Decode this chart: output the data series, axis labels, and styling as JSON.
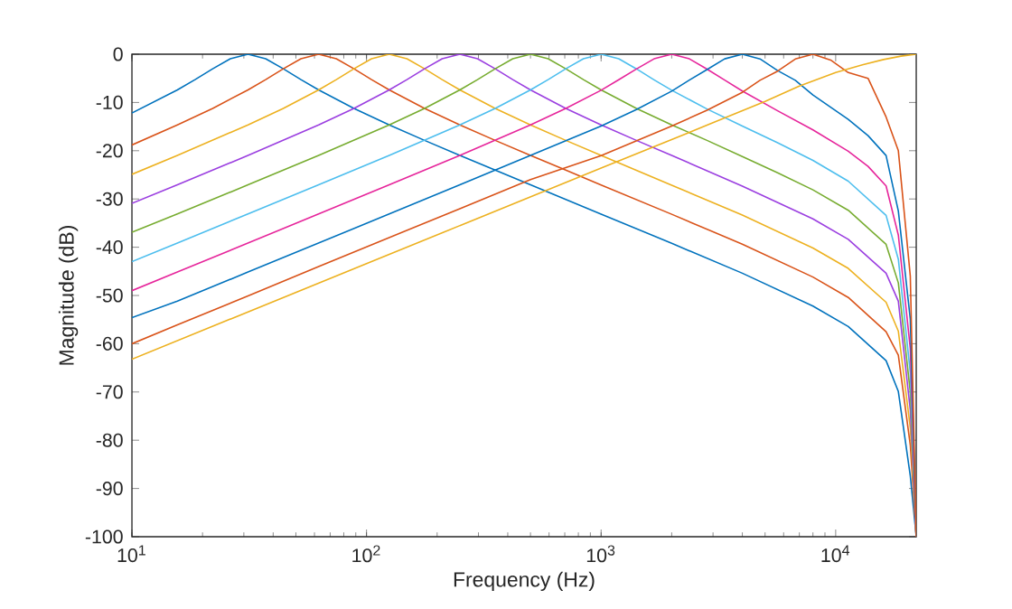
{
  "chart_data": {
    "type": "line",
    "xlabel": "Frequency (Hz)",
    "ylabel": "Magnitude (dB)",
    "log": "x",
    "xlim": [
      10,
      22050
    ],
    "ylim": [
      -100,
      0
    ],
    "xticks": [
      {
        "value": 10,
        "label": "10$^{1}$"
      },
      {
        "value": 100,
        "label": "10$^{2}$"
      },
      {
        "value": 1000,
        "label": "10$^{3}$"
      },
      {
        "value": 10000,
        "label": "10$^{4}$"
      }
    ],
    "yticks": [
      -100,
      -90,
      -80,
      -70,
      -60,
      -50,
      -40,
      -30,
      -20,
      -10,
      0
    ],
    "series": [
      {
        "color": "#0072BD",
        "x": [
          10,
          15.625,
          18.58,
          22.1,
          26.28,
          31.25,
          37.16,
          44.19,
          52.56,
          62.5,
          88.39,
          125,
          176.8,
          250,
          353.6,
          500,
          1000,
          2000,
          4000,
          8000,
          11314,
          16400,
          18500,
          20800,
          22050
        ],
        "values": [
          -12.2,
          -7.4,
          -5.27,
          -3.01,
          -0.94,
          0,
          -0.94,
          -3.01,
          -5.27,
          -7.4,
          -11.22,
          -14.64,
          -17.86,
          -20.97,
          -24.03,
          -27.07,
          -33.13,
          -39.19,
          -45.39,
          -52.2,
          -56.43,
          -63.5,
          -69.9,
          -87.4,
          -100
        ]
      },
      {
        "color": "#D95319",
        "x": [
          10,
          15.625,
          22.1,
          31.25,
          37.16,
          44.19,
          52.56,
          62.5,
          74.33,
          88.39,
          105.1,
          125,
          176.8,
          250,
          353.6,
          500,
          707.1,
          1000,
          2000,
          4000,
          8000,
          11314,
          16400,
          18500,
          20800,
          22050
        ],
        "values": [
          -18.8,
          -14.64,
          -11.22,
          -7.4,
          -5.27,
          -3.01,
          -0.94,
          0,
          -0.94,
          -3.01,
          -5.27,
          -7.4,
          -11.22,
          -14.64,
          -17.86,
          -20.97,
          -24.03,
          -27.11,
          -33.17,
          -39.37,
          -46.18,
          -50.41,
          -57.5,
          -62.4,
          -81.0,
          -100
        ]
      },
      {
        "color": "#EDB120",
        "x": [
          10,
          15.625,
          31.25,
          44.19,
          62.5,
          74.33,
          88.39,
          105.1,
          125,
          148.7,
          176.8,
          210.2,
          250,
          353.6,
          500,
          707.1,
          1000,
          2000,
          4000,
          8000,
          11314,
          16400,
          18500,
          20800,
          22050
        ],
        "values": [
          -24.9,
          -20.97,
          -14.64,
          -11.22,
          -7.4,
          -5.27,
          -3.01,
          -0.94,
          0,
          -0.94,
          -3.01,
          -5.27,
          -7.4,
          -11.22,
          -14.64,
          -17.86,
          -20.97,
          -27.15,
          -33.35,
          -40.16,
          -44.39,
          -51.4,
          -57.4,
          -77.4,
          -100
        ]
      },
      {
        "color": "#9B3FE0",
        "x": [
          10,
          15.625,
          31.25,
          62.5,
          88.39,
          125,
          148.7,
          176.8,
          210.2,
          250,
          297.3,
          353.6,
          420.4,
          500,
          707.1,
          1000,
          1414,
          2000,
          4000,
          8000,
          11314,
          16400,
          18500,
          20800,
          22050
        ],
        "values": [
          -30.9,
          -27.07,
          -20.97,
          -14.64,
          -11.22,
          -7.4,
          -5.27,
          -3.01,
          -0.94,
          0,
          -0.94,
          -3.01,
          -5.27,
          -7.4,
          -11.22,
          -14.64,
          -17.86,
          -20.97,
          -27.33,
          -34.14,
          -38.37,
          -45.4,
          -51.2,
          -73.7,
          -100
        ]
      },
      {
        "color": "#77AC30",
        "x": [
          10,
          15.625,
          31.25,
          62.5,
          125,
          176.8,
          250,
          297.3,
          353.6,
          420.4,
          500,
          594.6,
          707.1,
          840.9,
          1000,
          1414,
          2000,
          2828,
          4000,
          5657,
          8000,
          11314,
          16400,
          18500,
          20800,
          22050
        ],
        "values": [
          -36.9,
          -33.11,
          -27.07,
          -20.97,
          -14.64,
          -11.22,
          -7.4,
          -5.27,
          -3.01,
          -0.94,
          0,
          -0.94,
          -3.01,
          -5.27,
          -7.4,
          -11.22,
          -14.64,
          -17.86,
          -21.2,
          -24.57,
          -28.11,
          -32.34,
          -39.4,
          -47.4,
          -70.0,
          -100
        ]
      },
      {
        "color": "#4DBEEE",
        "x": [
          10,
          15.625,
          31.25,
          62.5,
          125,
          250,
          353.6,
          500,
          594.6,
          707.1,
          840.9,
          1000,
          1189,
          1414,
          1682,
          2000,
          2828,
          4000,
          5657,
          8000,
          11314,
          16400,
          18500,
          20800,
          22050
        ],
        "values": [
          -43.0,
          -39.13,
          -33.11,
          -27.07,
          -20.97,
          -14.64,
          -11.22,
          -7.4,
          -5.27,
          -3.01,
          -0.94,
          0,
          -0.94,
          -3.03,
          -5.3,
          -7.47,
          -11.35,
          -14.9,
          -18.36,
          -22.0,
          -26.31,
          -33.4,
          -42.5,
          -66.0,
          -100
        ]
      },
      {
        "color": "#E6259B",
        "x": [
          10,
          15.625,
          31.25,
          62.5,
          125,
          250,
          500,
          707.1,
          1000,
          1189,
          1414,
          1682,
          2000,
          2378,
          2828,
          3364,
          4000,
          5657,
          8000,
          11314,
          13740,
          16400,
          18500,
          20800,
          22050
        ],
        "values": [
          -49.0,
          -45.15,
          -39.13,
          -33.11,
          -27.07,
          -20.97,
          -14.64,
          -11.22,
          -7.47,
          -5.3,
          -3.06,
          -0.95,
          0,
          -0.95,
          -3.1,
          -5.35,
          -7.64,
          -11.73,
          -15.68,
          -20.1,
          -23.25,
          -27.3,
          -37.5,
          -61.0,
          -100
        ]
      },
      {
        "color": "#0072BD",
        "x": [
          10,
          15.625,
          31.25,
          62.5,
          125,
          250,
          500,
          1000,
          1414,
          2000,
          2378,
          2828,
          3364,
          4000,
          4757,
          5657,
          6727,
          8000,
          11314,
          13740,
          16400,
          18500,
          20800,
          22050
        ],
        "values": [
          -54.6,
          -51.18,
          -45.15,
          -39.13,
          -33.11,
          -27.07,
          -20.97,
          -14.9,
          -11.48,
          -7.65,
          -5.35,
          -3.19,
          -0.96,
          0,
          -0.97,
          -3.39,
          -5.4,
          -8.45,
          -13.52,
          -16.87,
          -21.0,
          -32.5,
          -54.9,
          -100
        ]
      },
      {
        "color": "#D95319",
        "x": [
          10,
          15.625,
          31.25,
          62.5,
          125,
          250,
          500,
          1000,
          2000,
          2828,
          4000,
          4757,
          5657,
          6727,
          8000,
          9514,
          11314,
          13740,
          16400,
          18500,
          20800,
          22050
        ],
        "values": [
          -60.0,
          -56.1,
          -50.1,
          -44.0,
          -38.0,
          -32.0,
          -26.0,
          -21.0,
          -14.9,
          -11.6,
          -7.9,
          -5.4,
          -3.5,
          -1.0,
          0,
          -1.2,
          -3.8,
          -5.0,
          -13.0,
          -20.0,
          -46.0,
          -100
        ]
      },
      {
        "color": "#EDB120",
        "x": [
          10,
          100,
          1000,
          3000,
          5000,
          7000,
          10000,
          13000,
          16000,
          19000,
          22050
        ],
        "values": [
          -63.2,
          -43.4,
          -23.6,
          -14.2,
          -9.8,
          -6.6,
          -3.8,
          -2.2,
          -1.1,
          -0.4,
          0
        ]
      }
    ]
  }
}
